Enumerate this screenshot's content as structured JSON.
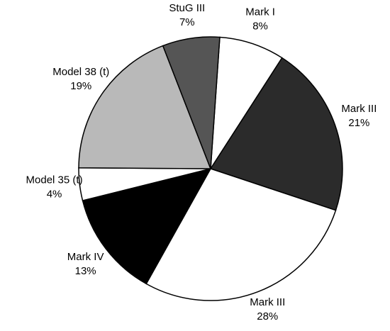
{
  "chart_data": {
    "type": "pie",
    "categories": [
      "Mark I",
      "Mark III",
      "Mark III",
      "Mark IV",
      "Model 35 (t)",
      "Model 38 (t)",
      "StuG III"
    ],
    "values": [
      8,
      21,
      28,
      13,
      4,
      19,
      7
    ],
    "value_labels": [
      "8%",
      "21%",
      "28%",
      "13%",
      "4%",
      "19%",
      "7%"
    ],
    "colors": [
      "#ffffff",
      "#2b2b2b",
      "#ffffff",
      "#000000",
      "#ffffff",
      "#b9b9b9",
      "#555555"
    ]
  }
}
